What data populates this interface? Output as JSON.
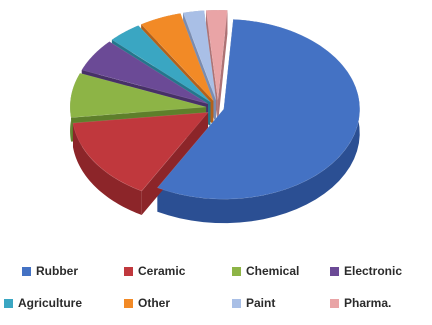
{
  "chart_data": {
    "type": "pie",
    "style": "3d-exploded",
    "categories": [
      "Rubber",
      "Ceramic",
      "Chemical",
      "Electronic",
      "Agriculture",
      "Other",
      "Paint",
      "Pharma."
    ],
    "values": [
      57,
      15,
      8,
      6,
      4,
      5,
      2.5,
      2.5
    ],
    "colors": [
      "#4472c4",
      "#c0383d",
      "#8db446",
      "#6b4a96",
      "#3aa6c2",
      "#f28a26",
      "#a9bfe6",
      "#e9a4a6"
    ],
    "side_colors": [
      "#2b4f93",
      "#8c2529",
      "#5e7f2b",
      "#473067",
      "#24768c",
      "#b3611a",
      "#7a8cb0",
      "#ad7274"
    ],
    "legend_position": "bottom",
    "legend": [
      {
        "label": "Rubber",
        "color": "#4472c4"
      },
      {
        "label": "Ceramic",
        "color": "#c0383d"
      },
      {
        "label": "Chemical",
        "color": "#8db446"
      },
      {
        "label": "Electronic",
        "color": "#6b4a96"
      },
      {
        "label": "Agriculture",
        "color": "#3aa6c2"
      },
      {
        "label": "Other",
        "color": "#f28a26"
      },
      {
        "label": "Paint",
        "color": "#a9bfe6"
      },
      {
        "label": "Pharma.",
        "color": "#e9a4a6"
      }
    ]
  }
}
